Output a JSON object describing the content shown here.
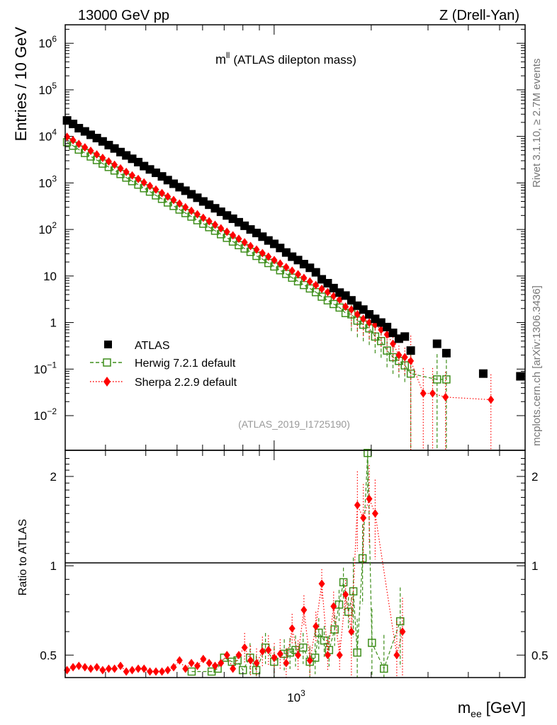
{
  "header": {
    "left": "13000 GeV pp",
    "right": "Z (Drell-Yan)"
  },
  "side_labels": {
    "top": "Rivet 3.1.10, ≥ 2.7M events",
    "bottom": "mcplots.cern.ch [arXiv:1306.3436]"
  },
  "main_panel": {
    "ylabel": "Entries / 10 GeV",
    "observable": "m",
    "observable_sup": "ll",
    "observable_desc": "(ATLAS dilepton mass)",
    "analysis_id": "(ATLAS_2019_I1725190)",
    "yticks": [
      {
        "value": 0.01,
        "base": "10",
        "exp": "−2"
      },
      {
        "value": 0.1,
        "base": "10",
        "exp": "−1"
      },
      {
        "value": 1,
        "base": "1",
        "exp": ""
      },
      {
        "value": 10,
        "base": "10",
        "exp": ""
      },
      {
        "value": 100,
        "base": "10",
        "exp": "2"
      },
      {
        "value": 1000,
        "base": "10",
        "exp": "3"
      },
      {
        "value": 10000,
        "base": "10",
        "exp": "4"
      },
      {
        "value": 100000,
        "base": "10",
        "exp": "5"
      },
      {
        "value": 1000000,
        "base": "10",
        "exp": "6"
      }
    ]
  },
  "ratio_panel": {
    "ylabel": "Ratio to ATLAS",
    "yticks": [
      "0.5",
      "1",
      "2"
    ]
  },
  "xaxis": {
    "label_main": "m",
    "label_sub": "ee",
    "label_unit": "[GeV]",
    "tick_base": "10",
    "tick_exp": "3"
  },
  "legend": {
    "atlas": "ATLAS",
    "herwig": "Herwig 7.2.1 default",
    "sherpa": "Sherpa 2.2.9 default"
  },
  "colors": {
    "atlas": "#000000",
    "herwig": "#3e8e1b",
    "sherpa": "#ff0000"
  },
  "chart_data": [
    {
      "type": "scatter",
      "panel": "main",
      "title": "m^ll (ATLAS dilepton mass)",
      "xlabel": "m_ee [GeV]",
      "ylabel": "Entries / 10 GeV",
      "xscale": "log",
      "yscale": "log",
      "xlim": [
        225,
        6000
      ],
      "ylim": [
        0.0018,
        2500000
      ],
      "legend_position": "bottom-left",
      "series": [
        {
          "name": "ATLAS",
          "marker": "square-filled",
          "x": [
            228,
            238,
            248,
            259,
            270,
            282,
            294,
            307,
            320,
            334,
            348,
            363,
            379,
            395,
            412,
            430,
            449,
            468,
            488,
            509,
            531,
            554,
            578,
            603,
            629,
            656,
            684,
            714,
            745,
            777,
            810,
            845,
            882,
            920,
            960,
            1001,
            1044,
            1090,
            1137,
            1186,
            1237,
            1291,
            1347,
            1405,
            1466,
            1529,
            1596,
            1665,
            1736,
            1812,
            1890,
            1972,
            2057,
            2146,
            2239,
            2336,
            2437,
            2542,
            2652,
            3200,
            3420,
            4450,
            5800
          ],
          "y": [
            22000,
            18500,
            15000,
            12800,
            10800,
            9200,
            7800,
            6500,
            5500,
            4600,
            3900,
            3300,
            2800,
            2300,
            1950,
            1650,
            1380,
            1150,
            960,
            810,
            680,
            570,
            480,
            400,
            340,
            285,
            240,
            200,
            170,
            143,
            120,
            100,
            84,
            70,
            58,
            49,
            40,
            32,
            26,
            22,
            18,
            15,
            12,
            8.5,
            7,
            5.5,
            4.4,
            3.8,
            3.0,
            2.3,
            1.9,
            1.5,
            1.2,
            1.0,
            0.8,
            0.6,
            0.45,
            0.5,
            0.25,
            0.35,
            0.22,
            0.08,
            0.07
          ]
        },
        {
          "name": "Herwig 7.2.1 default",
          "marker": "square-open",
          "x": [
            228,
            238,
            248,
            259,
            270,
            282,
            294,
            307,
            320,
            334,
            348,
            363,
            379,
            395,
            412,
            430,
            449,
            468,
            488,
            509,
            531,
            554,
            578,
            603,
            629,
            656,
            684,
            714,
            745,
            777,
            810,
            845,
            882,
            920,
            960,
            1001,
            1044,
            1090,
            1137,
            1186,
            1237,
            1291,
            1347,
            1405,
            1466,
            1529,
            1596,
            1665,
            1736,
            1812,
            1890,
            1972,
            2057,
            2146,
            2239,
            2336,
            2437,
            2542,
            2652,
            3200,
            3420
          ],
          "y": [
            7500,
            6300,
            5200,
            4400,
            3700,
            3100,
            2600,
            2200,
            1850,
            1550,
            1300,
            1090,
            920,
            770,
            650,
            540,
            455,
            380,
            320,
            268,
            225,
            189,
            158,
            133,
            112,
            94,
            79,
            66,
            55,
            46,
            39,
            33,
            27,
            23,
            19,
            16,
            13.3,
            11.1,
            9.2,
            7.7,
            6.4,
            5.4,
            4.5,
            3.6,
            3.0,
            2.5,
            2.1,
            1.6,
            1.5,
            1.1,
            0.9,
            0.75,
            0.5,
            0.4,
            0.25,
            0.18,
            0.15,
            0.12,
            0.08,
            0.06,
            0.06
          ]
        },
        {
          "name": "Sherpa 2.2.9 default",
          "marker": "diamond-filled",
          "x": [
            228,
            238,
            248,
            259,
            270,
            282,
            294,
            307,
            320,
            334,
            348,
            363,
            379,
            395,
            412,
            430,
            449,
            468,
            488,
            509,
            531,
            554,
            578,
            603,
            629,
            656,
            684,
            714,
            745,
            777,
            810,
            845,
            882,
            920,
            960,
            1001,
            1044,
            1090,
            1137,
            1186,
            1237,
            1291,
            1347,
            1405,
            1466,
            1529,
            1596,
            1665,
            1736,
            1812,
            1890,
            1972,
            2057,
            2146,
            2239,
            2336,
            2437,
            2542,
            2652,
            2900,
            3100,
            3400,
            4700
          ],
          "y": [
            9800,
            8300,
            6900,
            5800,
            4900,
            4100,
            3450,
            2900,
            2450,
            2050,
            1720,
            1450,
            1220,
            1020,
            860,
            720,
            605,
            510,
            430,
            360,
            300,
            252,
            212,
            178,
            150,
            126,
            106,
            89,
            75,
            63,
            53,
            44,
            37,
            31,
            26,
            22,
            18.5,
            15.5,
            13,
            10.9,
            9.1,
            7.6,
            6.4,
            5.3,
            4.5,
            3.7,
            3.1,
            2.2,
            1.9,
            1.5,
            1.2,
            1.0,
            0.9,
            0.7,
            0.55,
            0.35,
            0.2,
            0.18,
            0.15,
            0.03,
            0.03,
            0.025,
            0.022
          ]
        }
      ]
    },
    {
      "type": "scatter",
      "panel": "ratio",
      "xlabel": "m_ee [GeV]",
      "ylabel": "Ratio to ATLAS",
      "xscale": "log",
      "yscale": "log",
      "xlim": [
        225,
        6000
      ],
      "ylim": [
        0.42,
        2.45
      ],
      "reference_line": 1,
      "series": [
        {
          "name": "Herwig 7.2.1 default",
          "marker": "square-open",
          "x": [
            555,
            640,
            668,
            700,
            740,
            770,
            800,
            842,
            880,
            940,
            1000,
            1075,
            1120,
            1165,
            1230,
            1290,
            1340,
            1375,
            1430,
            1480,
            1540,
            1590,
            1640,
            1700,
            1760,
            1810,
            1880,
            1950,
            2010,
            2190,
            2460
          ],
          "y": [
            0.44,
            0.44,
            0.45,
            0.49,
            0.475,
            0.48,
            0.445,
            0.49,
            0.445,
            0.53,
            0.475,
            0.505,
            0.51,
            0.52,
            0.53,
            0.475,
            0.49,
            0.595,
            0.56,
            0.52,
            0.61,
            0.74,
            0.88,
            0.7,
            0.82,
            0.51,
            1.06,
            2.4,
            0.55,
            0.45,
            0.65
          ]
        },
        {
          "name": "Sherpa 2.2.9 default",
          "marker": "diamond-filled",
          "x": [
            228,
            238,
            248,
            259,
            270,
            282,
            294,
            307,
            320,
            334,
            348,
            363,
            379,
            395,
            412,
            430,
            449,
            468,
            488,
            509,
            531,
            554,
            578,
            603,
            629,
            656,
            684,
            714,
            745,
            777,
            810,
            845,
            882,
            920,
            960,
            1001,
            1044,
            1090,
            1137,
            1186,
            1237,
            1291,
            1347,
            1405,
            1466,
            1529,
            1596,
            1665,
            1736,
            1812,
            1890,
            1972,
            2057,
            2400,
            2500
          ],
          "y": [
            0.445,
            0.455,
            0.46,
            0.455,
            0.45,
            0.455,
            0.445,
            0.45,
            0.45,
            0.46,
            0.44,
            0.445,
            0.45,
            0.45,
            0.44,
            0.44,
            0.44,
            0.445,
            0.455,
            0.48,
            0.45,
            0.47,
            0.46,
            0.485,
            0.47,
            0.46,
            0.47,
            0.5,
            0.45,
            0.5,
            0.53,
            0.48,
            0.47,
            0.515,
            0.52,
            0.49,
            0.505,
            0.47,
            0.615,
            0.5,
            0.71,
            0.48,
            0.625,
            0.87,
            0.5,
            0.73,
            0.5,
            0.8,
            0.6,
            1.6,
            1.45,
            1.68,
            1.5,
            0.5,
            0.6
          ]
        }
      ]
    }
  ]
}
